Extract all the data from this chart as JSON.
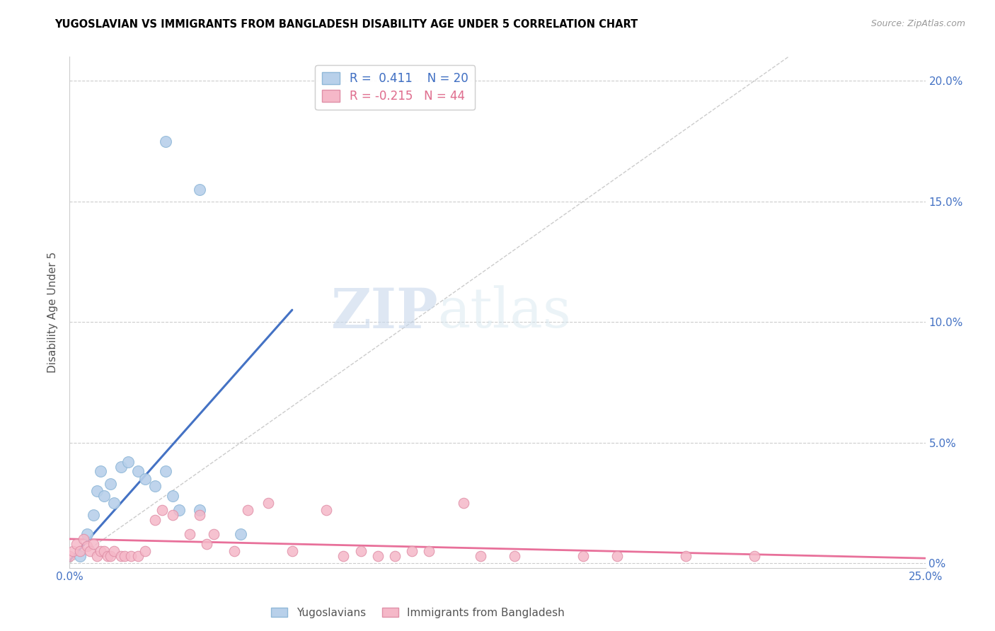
{
  "title": "YUGOSLAVIAN VS IMMIGRANTS FROM BANGLADESH DISABILITY AGE UNDER 5 CORRELATION CHART",
  "source": "Source: ZipAtlas.com",
  "ylabel": "Disability Age Under 5",
  "xlim": [
    0,
    0.25
  ],
  "ylim": [
    -0.002,
    0.21
  ],
  "color_blue": "#b8d0ea",
  "color_blue_edge": "#90b8d8",
  "color_blue_line": "#4472c4",
  "color_pink": "#f5b8c8",
  "color_pink_edge": "#e090a8",
  "color_pink_line": "#e8709a",
  "color_diag": "#aaaaaa",
  "blue_points": [
    [
      0.003,
      0.003
    ],
    [
      0.005,
      0.012
    ],
    [
      0.007,
      0.02
    ],
    [
      0.008,
      0.03
    ],
    [
      0.009,
      0.038
    ],
    [
      0.01,
      0.028
    ],
    [
      0.012,
      0.033
    ],
    [
      0.013,
      0.025
    ],
    [
      0.015,
      0.04
    ],
    [
      0.017,
      0.042
    ],
    [
      0.02,
      0.038
    ],
    [
      0.022,
      0.035
    ],
    [
      0.025,
      0.032
    ],
    [
      0.028,
      0.038
    ],
    [
      0.03,
      0.028
    ],
    [
      0.032,
      0.022
    ],
    [
      0.038,
      0.022
    ],
    [
      0.05,
      0.012
    ],
    [
      0.028,
      0.175
    ],
    [
      0.038,
      0.155
    ]
  ],
  "pink_points": [
    [
      0.0,
      0.003
    ],
    [
      0.001,
      0.005
    ],
    [
      0.002,
      0.008
    ],
    [
      0.003,
      0.005
    ],
    [
      0.004,
      0.01
    ],
    [
      0.005,
      0.007
    ],
    [
      0.006,
      0.005
    ],
    [
      0.007,
      0.008
    ],
    [
      0.008,
      0.003
    ],
    [
      0.009,
      0.005
    ],
    [
      0.01,
      0.005
    ],
    [
      0.011,
      0.003
    ],
    [
      0.012,
      0.003
    ],
    [
      0.013,
      0.005
    ],
    [
      0.015,
      0.003
    ],
    [
      0.016,
      0.003
    ],
    [
      0.018,
      0.003
    ],
    [
      0.02,
      0.003
    ],
    [
      0.022,
      0.005
    ],
    [
      0.025,
      0.018
    ],
    [
      0.027,
      0.022
    ],
    [
      0.03,
      0.02
    ],
    [
      0.035,
      0.012
    ],
    [
      0.038,
      0.02
    ],
    [
      0.04,
      0.008
    ],
    [
      0.042,
      0.012
    ],
    [
      0.048,
      0.005
    ],
    [
      0.052,
      0.022
    ],
    [
      0.058,
      0.025
    ],
    [
      0.065,
      0.005
    ],
    [
      0.075,
      0.022
    ],
    [
      0.08,
      0.003
    ],
    [
      0.085,
      0.005
    ],
    [
      0.09,
      0.003
    ],
    [
      0.095,
      0.003
    ],
    [
      0.1,
      0.005
    ],
    [
      0.105,
      0.005
    ],
    [
      0.115,
      0.025
    ],
    [
      0.12,
      0.003
    ],
    [
      0.13,
      0.003
    ],
    [
      0.15,
      0.003
    ],
    [
      0.16,
      0.003
    ],
    [
      0.18,
      0.003
    ],
    [
      0.2,
      0.003
    ]
  ],
  "blue_line_x": [
    0.0,
    0.065
  ],
  "blue_line_y": [
    0.001,
    0.105
  ],
  "pink_line_x": [
    0.0,
    0.25
  ],
  "pink_line_y": [
    0.01,
    0.002
  ],
  "diag_line_x": [
    0.0,
    0.21
  ],
  "diag_line_y": [
    0.0,
    0.21
  ],
  "ytick_positions": [
    0.0,
    0.05,
    0.1,
    0.15,
    0.2
  ],
  "ytick_labels_right": [
    "0%",
    "5.0%",
    "10.0%",
    "15.0%",
    "20.0%"
  ],
  "xtick_positions": [
    0.0,
    0.05,
    0.1,
    0.15,
    0.2,
    0.25
  ],
  "xtick_labels": [
    "0.0%",
    "",
    "",
    "",
    "",
    "25.0%"
  ]
}
